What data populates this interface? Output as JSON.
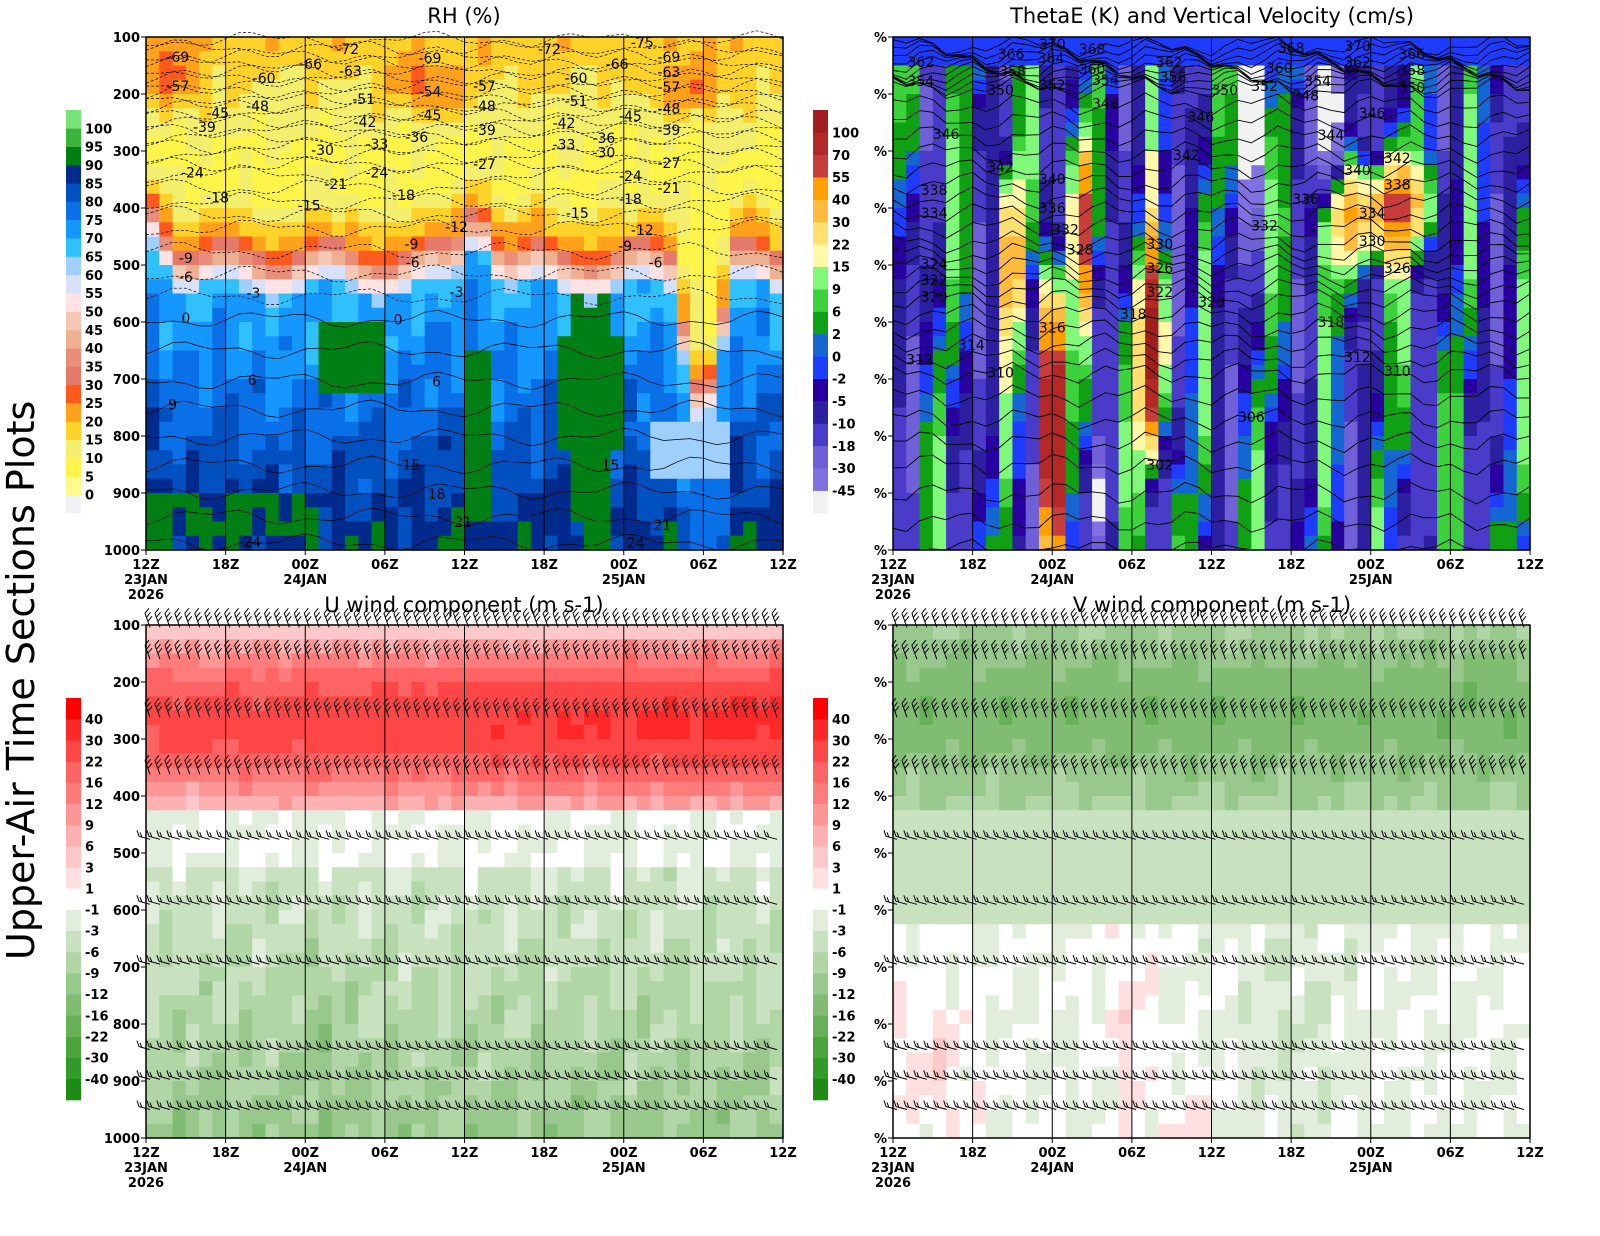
{
  "side_label": "Upper-Air Time Sections Plots",
  "chart_data": [
    {
      "type": "heatmap",
      "id": "rh",
      "title": "RH (%)",
      "ylabel": "",
      "ylim": [
        1000,
        100
      ],
      "y_ticks": [
        "100",
        "200",
        "300",
        "400",
        "500",
        "600",
        "700",
        "800",
        "900",
        "1000"
      ],
      "x_ticks": [
        "12Z",
        "18Z",
        "00Z",
        "06Z",
        "12Z",
        "18Z",
        "00Z",
        "06Z",
        "12Z"
      ],
      "x_dates": [
        {
          "tick": 0,
          "lines": [
            "23JAN",
            "2026"
          ]
        },
        {
          "tick": 2,
          "lines": [
            "24JAN"
          ]
        },
        {
          "tick": 6,
          "lines": [
            "25JAN"
          ]
        }
      ],
      "colorbar": {
        "levels": [
          0,
          5,
          10,
          15,
          20,
          25,
          30,
          35,
          40,
          45,
          50,
          55,
          60,
          65,
          70,
          75,
          80,
          85,
          90,
          95,
          100
        ],
        "colors": [
          "#f2f2f2",
          "#fffa8c",
          "#fff44a",
          "#f3ee6c",
          "#ffd22a",
          "#ffa11a",
          "#ff5a1e",
          "#e57a6a",
          "#ea8e7a",
          "#efb092",
          "#f4c8b4",
          "#fde3e3",
          "#d8e0fa",
          "#9fd0fc",
          "#30c0ff",
          "#1497ff",
          "#0a70e8",
          "#0050c0",
          "#002a8c",
          "#008014",
          "#3cb43c",
          "#78e278"
        ]
      },
      "contour_labels": [
        [
          2.4,
          135,
          "-69"
        ],
        [
          2.4,
          186,
          "-57"
        ],
        [
          8.9,
          172,
          "-60"
        ],
        [
          12.4,
          147,
          "-66"
        ],
        [
          15.2,
          121,
          "-72"
        ],
        [
          15.4,
          160,
          "-63"
        ],
        [
          21.4,
          137,
          "-69"
        ],
        [
          21.4,
          196,
          "-54"
        ],
        [
          21.4,
          237,
          "-45"
        ],
        [
          20.4,
          275,
          "-36"
        ],
        [
          16.4,
          209,
          "-51"
        ],
        [
          16.5,
          249,
          "-42"
        ],
        [
          17.4,
          288,
          "-33"
        ],
        [
          8.4,
          221,
          "-48"
        ],
        [
          5.4,
          233,
          "-45"
        ],
        [
          4.4,
          258,
          "-39"
        ],
        [
          13.3,
          298,
          "-30"
        ],
        [
          14.3,
          358,
          "-21"
        ],
        [
          3.5,
          338,
          "-24"
        ],
        [
          17.4,
          338,
          "-24"
        ],
        [
          5.4,
          382,
          "-18"
        ],
        [
          12.3,
          396,
          "-15"
        ],
        [
          19.4,
          377,
          "-18"
        ],
        [
          25.5,
          186,
          "-57"
        ],
        [
          25.5,
          221,
          "-48"
        ],
        [
          25.5,
          263,
          "-39"
        ],
        [
          25.5,
          323,
          "-27"
        ],
        [
          23.4,
          433,
          "-12"
        ],
        [
          20.0,
          463,
          "-9"
        ],
        [
          20.1,
          496,
          "-6"
        ],
        [
          3.0,
          488,
          "-9"
        ],
        [
          3.0,
          521,
          "-6"
        ],
        [
          8.1,
          549,
          "-3"
        ],
        [
          23.4,
          547,
          "-3"
        ],
        [
          3.0,
          593,
          "0"
        ],
        [
          19.0,
          596,
          "0"
        ],
        [
          8.0,
          702,
          "6"
        ],
        [
          21.9,
          704,
          "6"
        ],
        [
          2.0,
          745,
          "9"
        ],
        [
          20.0,
          851,
          "15"
        ],
        [
          21.9,
          902,
          "18"
        ],
        [
          23.9,
          951,
          "21"
        ],
        [
          8.0,
          986,
          "24"
        ],
        [
          30.4,
          121,
          "-72"
        ],
        [
          32.4,
          172,
          "-60"
        ],
        [
          32.4,
          212,
          "-51"
        ],
        [
          31.5,
          251,
          "-42"
        ],
        [
          31.5,
          289,
          "-33"
        ],
        [
          34.5,
          277,
          "-36"
        ],
        [
          34.5,
          303,
          "-30"
        ],
        [
          32.5,
          409,
          "-15"
        ],
        [
          37.4,
          110,
          "-75"
        ],
        [
          35.5,
          147,
          "-66"
        ],
        [
          39.4,
          135,
          "-69"
        ],
        [
          39.4,
          161,
          "-63"
        ],
        [
          39.4,
          188,
          "-57"
        ],
        [
          39.4,
          225,
          "-48"
        ],
        [
          36.5,
          239,
          "-45"
        ],
        [
          39.4,
          263,
          "-39"
        ],
        [
          39.4,
          321,
          "-27"
        ],
        [
          36.5,
          344,
          "-24"
        ],
        [
          39.4,
          365,
          "-21"
        ],
        [
          36.5,
          384,
          "-18"
        ],
        [
          37.4,
          439,
          "-12"
        ],
        [
          36.1,
          467,
          "-9"
        ],
        [
          38.4,
          496,
          "-6"
        ],
        [
          35.0,
          851,
          "15"
        ],
        [
          38.9,
          956,
          "21"
        ],
        [
          36.9,
          988,
          "24"
        ]
      ]
    },
    {
      "type": "heatmap",
      "id": "theta",
      "title": "ThetaE (K) and Vertical Velocity (cm/s)",
      "ylim": [
        1000,
        100
      ],
      "y_ticks": [
        "%",
        "%",
        "%",
        "%",
        "%",
        "%",
        "%",
        "%",
        "%",
        "%"
      ],
      "x_ticks": [
        "12Z",
        "18Z",
        "00Z",
        "06Z",
        "12Z",
        "18Z",
        "00Z",
        "06Z",
        "12Z"
      ],
      "x_dates": [
        {
          "tick": 0,
          "lines": [
            "23JAN",
            "2026"
          ]
        },
        {
          "tick": 2,
          "lines": [
            "24JAN"
          ]
        },
        {
          "tick": 6,
          "lines": [
            "25JAN"
          ]
        }
      ],
      "colorbar": {
        "levels": [
          -45,
          -30,
          -18,
          -10,
          -5,
          -2,
          0,
          2,
          6,
          9,
          15,
          22,
          30,
          40,
          55,
          70,
          100
        ],
        "colors": [
          "#f2f2f2",
          "#8070e0",
          "#7060d8",
          "#4a3cc8",
          "#2c20a0",
          "#2800a0",
          "#1e3cff",
          "#1466d2",
          "#10a014",
          "#3cd23c",
          "#80f87a",
          "#fff8a8",
          "#ffe070",
          "#ffbc3c",
          "#ffa000",
          "#c83c3c",
          "#b42828",
          "#a01e1e"
        ]
      },
      "contour_labels": [
        [
          2.1,
          144,
          "362"
        ],
        [
          2.1,
          177,
          "354"
        ],
        [
          8.9,
          130,
          "366"
        ],
        [
          11.9,
          137,
          "364"
        ],
        [
          12.0,
          112,
          "370"
        ],
        [
          15.0,
          121,
          "368"
        ],
        [
          9.0,
          160,
          "358"
        ],
        [
          15.0,
          156,
          "360"
        ],
        [
          8.1,
          193,
          "350"
        ],
        [
          12.0,
          184,
          "352"
        ],
        [
          16.0,
          175,
          "354"
        ],
        [
          20.8,
          144,
          "362"
        ],
        [
          21.1,
          170,
          "356"
        ],
        [
          16.0,
          217,
          "348"
        ],
        [
          4.0,
          270,
          "346"
        ],
        [
          8.1,
          328,
          "342"
        ],
        [
          12.0,
          349,
          "340"
        ],
        [
          3.1,
          368,
          "338"
        ],
        [
          12.0,
          400,
          "336"
        ],
        [
          3.1,
          409,
          "334"
        ],
        [
          13.0,
          438,
          "332"
        ],
        [
          14.1,
          473,
          "328"
        ],
        [
          20.1,
          463,
          "330"
        ],
        [
          20.1,
          505,
          "326"
        ],
        [
          20.1,
          547,
          "322"
        ],
        [
          3.1,
          498,
          "324"
        ],
        [
          3.1,
          526,
          "322"
        ],
        [
          3.1,
          556,
          "320"
        ],
        [
          18.1,
          586,
          "318"
        ],
        [
          12.0,
          610,
          "316"
        ],
        [
          5.9,
          640,
          "314"
        ],
        [
          2.0,
          666,
          "312"
        ],
        [
          8.1,
          689,
          "310"
        ],
        [
          27.0,
          767,
          "306"
        ],
        [
          20.1,
          851,
          "302"
        ],
        [
          23.2,
          240,
          "346"
        ],
        [
          22.1,
          307,
          "342"
        ],
        [
          25.0,
          193,
          "350"
        ],
        [
          28.0,
          186,
          "352"
        ],
        [
          30.0,
          119,
          "368"
        ],
        [
          29.1,
          154,
          "360"
        ],
        [
          31.1,
          203,
          "348"
        ],
        [
          32.0,
          177,
          "354"
        ],
        [
          31.1,
          384,
          "336"
        ],
        [
          28.0,
          431,
          "332"
        ],
        [
          24.0,
          565,
          "320"
        ],
        [
          33.0,
          600,
          "318"
        ],
        [
          35.0,
          116,
          "370"
        ],
        [
          35.0,
          144,
          "362"
        ],
        [
          39.1,
          130,
          "366"
        ],
        [
          39.1,
          158,
          "358"
        ],
        [
          39.1,
          189,
          "350"
        ],
        [
          33.0,
          272,
          "344"
        ],
        [
          36.1,
          233,
          "346"
        ],
        [
          35.0,
          333,
          "340"
        ],
        [
          38.0,
          312,
          "342"
        ],
        [
          38.0,
          359,
          "338"
        ],
        [
          36.1,
          409,
          "334"
        ],
        [
          36.1,
          458,
          "330"
        ],
        [
          38.0,
          505,
          "326"
        ],
        [
          35.0,
          661,
          "312"
        ],
        [
          38.0,
          686,
          "310"
        ]
      ]
    },
    {
      "type": "heatmap",
      "id": "u",
      "title": "U wind component (m s-1)",
      "ylim": [
        1000,
        100
      ],
      "y_ticks": [
        "100",
        "200",
        "300",
        "400",
        "500",
        "600",
        "700",
        "800",
        "900",
        "1000"
      ],
      "x_ticks": [
        "12Z",
        "18Z",
        "00Z",
        "06Z",
        "12Z",
        "18Z",
        "00Z",
        "06Z",
        "12Z"
      ],
      "x_dates": [
        {
          "tick": 0,
          "lines": [
            "23JAN",
            "2026"
          ]
        },
        {
          "tick": 2,
          "lines": [
            "24JAN"
          ]
        },
        {
          "tick": 6,
          "lines": [
            "25JAN"
          ]
        }
      ],
      "colorbar": {
        "levels": [
          -40,
          -30,
          -22,
          -16,
          -12,
          -9,
          -6,
          -3,
          -1,
          1,
          3,
          6,
          9,
          12,
          16,
          22,
          30,
          40
        ],
        "colors": [
          "#1e8c14",
          "#329a28",
          "#4ca43c",
          "#66b058",
          "#80bc72",
          "#98c88c",
          "#b0d6a6",
          "#c8e2c0",
          "#e2eedc",
          "#ffffff",
          "#ffe0e0",
          "#ffc8c8",
          "#ffb0b0",
          "#ff9696",
          "#ff7c7c",
          "#ff6464",
          "#ff4646",
          "#ff2828",
          "#ff0000"
        ]
      },
      "contour_labels": []
    },
    {
      "type": "heatmap",
      "id": "v",
      "title": "V wind component (m s-1)",
      "ylim": [
        1000,
        100
      ],
      "y_ticks": [
        "%",
        "%",
        "%",
        "%",
        "%",
        "%",
        "%",
        "%",
        "%",
        "%"
      ],
      "x_ticks": [
        "12Z",
        "18Z",
        "00Z",
        "06Z",
        "12Z",
        "18Z",
        "00Z",
        "06Z",
        "12Z"
      ],
      "x_dates": [
        {
          "tick": 0,
          "lines": [
            "23JAN",
            "2026"
          ]
        },
        {
          "tick": 2,
          "lines": [
            "24JAN"
          ]
        },
        {
          "tick": 6,
          "lines": [
            "25JAN"
          ]
        }
      ],
      "colorbar": {
        "levels": [
          -40,
          -30,
          -22,
          -16,
          -12,
          -9,
          -6,
          -3,
          -1,
          1,
          3,
          6,
          9,
          12,
          16,
          22,
          30,
          40
        ],
        "colors": [
          "#1e8c14",
          "#329a28",
          "#4ca43c",
          "#66b058",
          "#80bc72",
          "#98c88c",
          "#b0d6a6",
          "#c8e2c0",
          "#e2eedc",
          "#ffffff",
          "#ffe0e0",
          "#ffc8c8",
          "#ffb0b0",
          "#ff9696",
          "#ff7c7c",
          "#ff6464",
          "#ff4646",
          "#ff2828",
          "#ff0000"
        ]
      },
      "contour_labels": []
    }
  ]
}
